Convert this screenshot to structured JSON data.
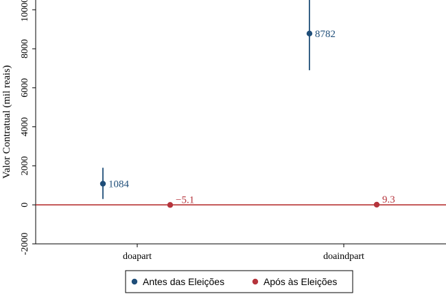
{
  "chart_data": {
    "type": "scatter",
    "subtype": "coefficient-plot-with-confidence-intervals",
    "title": "",
    "xlabel": "",
    "ylabel": "Valor Contratual (mil reais)",
    "categories": [
      "doapart",
      "doaindpart"
    ],
    "ylim": [
      -2000,
      10500
    ],
    "yticks": [
      -2000,
      0,
      2000,
      4000,
      6000,
      8000,
      10000
    ],
    "grid": false,
    "reference_line": {
      "y": 0,
      "color": "#b22222"
    },
    "legend_position": "bottom",
    "series": [
      {
        "name": "Antes das Eleições",
        "color": "#1f4e79",
        "points": [
          {
            "category": "doapart",
            "value": 1084,
            "label": "1084",
            "ci": [
              300,
              1900
            ]
          },
          {
            "category": "doaindpart",
            "value": 8782,
            "label": "8782",
            "ci": [
              6900,
              10650
            ]
          }
        ]
      },
      {
        "name": "Após às Eleições",
        "color": "#b5343c",
        "points": [
          {
            "category": "doapart",
            "value": -5.1,
            "label": "−5.1",
            "ci": [
              -5.1,
              -5.1
            ]
          },
          {
            "category": "doaindpart",
            "value": 9.3,
            "label": "9.3",
            "ci": [
              9.3,
              9.3
            ]
          }
        ]
      }
    ]
  }
}
